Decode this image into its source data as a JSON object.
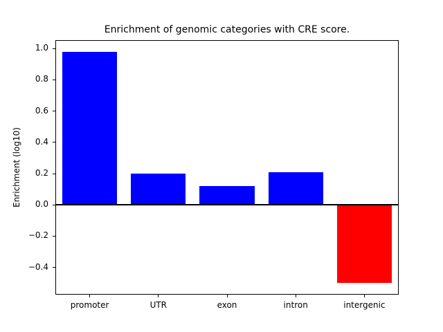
{
  "chart_data": {
    "type": "bar",
    "title": "Enrichment of genomic categories with CRE score.",
    "xlabel": "",
    "ylabel": "Enrichment (log10)",
    "categories": [
      "promoter",
      "UTR",
      "exon",
      "intron",
      "intergenic"
    ],
    "values": [
      0.98,
      0.2,
      0.12,
      0.21,
      -0.5
    ],
    "bar_colors": [
      "#0000ff",
      "#0000ff",
      "#0000ff",
      "#0000ff",
      "#ff0000"
    ],
    "positive_color": "#0000ff",
    "negative_color": "#ff0000",
    "ylim": [
      -0.574,
      1.054
    ],
    "yticks": [
      -0.4,
      -0.2,
      0.0,
      0.2,
      0.4,
      0.6,
      0.8,
      1.0
    ],
    "zero_line": true,
    "grid": false,
    "legend": "none"
  }
}
